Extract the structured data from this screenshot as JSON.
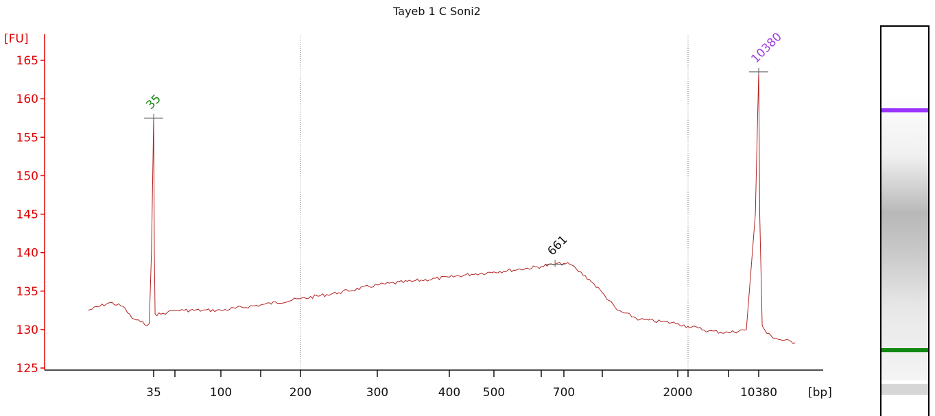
{
  "chart_data": {
    "type": "line",
    "title": "Tayeb 1 C Soni2",
    "ylabel": "[FU]",
    "xlabel": "[bp]",
    "ylim": [
      125,
      166
    ],
    "y_ticks": [
      125,
      130,
      135,
      140,
      145,
      150,
      155,
      160,
      165
    ],
    "x_ticks": [
      {
        "label": "35",
        "bp": 35
      },
      {
        "label": "",
        "bp": 50
      },
      {
        "label": "100",
        "bp": 100
      },
      {
        "label": "",
        "bp": 150
      },
      {
        "label": "200",
        "bp": 200
      },
      {
        "label": "300",
        "bp": 300
      },
      {
        "label": "400",
        "bp": 400
      },
      {
        "label": "500",
        "bp": 500
      },
      {
        "label": "",
        "bp": 600
      },
      {
        "label": "700",
        "bp": 700
      },
      {
        "label": "",
        "bp": 1000
      },
      {
        "label": "2000",
        "bp": 2000
      },
      {
        "label": "",
        "bp": 3000
      },
      {
        "label": "",
        "bp": 7000
      },
      {
        "label": "10380",
        "bp": 10380
      }
    ],
    "reference_lines_bp": [
      200,
      3000
    ],
    "grid": false,
    "series": [
      {
        "color": "#b22222",
        "points": [
          [
            20,
            132.5
          ],
          [
            25,
            133.5
          ],
          [
            28,
            133.0
          ],
          [
            30,
            131.5
          ],
          [
            32,
            131.0
          ],
          [
            33,
            130.6
          ],
          [
            34,
            130.8
          ],
          [
            34.5,
            140.0
          ],
          [
            35,
            157.5
          ],
          [
            35.5,
            140.0
          ],
          [
            36,
            132.0
          ],
          [
            40,
            132.0
          ],
          [
            45,
            132.3
          ],
          [
            50,
            132.5
          ],
          [
            60,
            132.5
          ],
          [
            80,
            132.5
          ],
          [
            100,
            132.5
          ],
          [
            150,
            133.2
          ],
          [
            200,
            134.0
          ],
          [
            250,
            134.8
          ],
          [
            300,
            135.8
          ],
          [
            350,
            136.3
          ],
          [
            400,
            136.8
          ],
          [
            450,
            137.2
          ],
          [
            500,
            137.5
          ],
          [
            550,
            137.8
          ],
          [
            600,
            138.2
          ],
          [
            661,
            138.5
          ],
          [
            700,
            138.6
          ],
          [
            760,
            138.4
          ],
          [
            800,
            137.8
          ],
          [
            900,
            136.5
          ],
          [
            1000,
            134.8
          ],
          [
            1200,
            132.5
          ],
          [
            1500,
            131.3
          ],
          [
            2000,
            130.8
          ],
          [
            3000,
            130.4
          ],
          [
            4000,
            130.2
          ],
          [
            5000,
            129.8
          ],
          [
            7000,
            129.6
          ],
          [
            9000,
            130.0
          ],
          [
            10000,
            145.0
          ],
          [
            10380,
            163.5
          ],
          [
            10700,
            145.0
          ],
          [
            11500,
            130.5
          ],
          [
            13000,
            129.5
          ],
          [
            16000,
            128.8
          ],
          [
            22000,
            128.3
          ]
        ]
      }
    ],
    "peaks": [
      {
        "label": "35",
        "bp": 35,
        "fu": 157.5,
        "color": "#118811"
      },
      {
        "label": "661",
        "bp": 661,
        "fu": 138.5,
        "color": "#111111"
      },
      {
        "label": "10380",
        "bp": 10380,
        "fu": 163.5,
        "color": "#a040e0"
      }
    ],
    "gel_lane": {
      "bands": [
        {
          "name": "upper-marker",
          "bp": 10380,
          "color": "#9933ff"
        },
        {
          "name": "lower-marker",
          "bp": 35,
          "color": "#118811"
        }
      ],
      "smear_color": "#888888"
    }
  }
}
